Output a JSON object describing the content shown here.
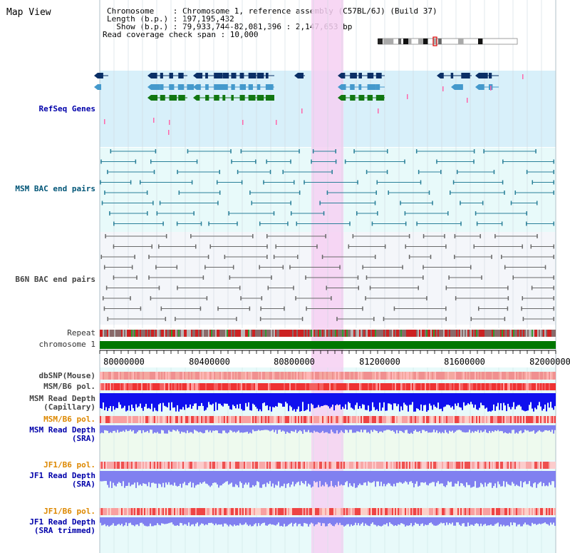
{
  "title": "Map View",
  "info": {
    "line1": "Chromosome    : Chromosome 1, reference assembly (C57BL/6J) (Build 37)",
    "line2": "Length (b.p.) : 197,195,432",
    "line3": "  Show (b.p.) : 79,933,744-82,081,396 : 2,147,653 bp",
    "line4": "Read coverage check span : 10,000"
  },
  "tracks": {
    "refseq": "RefSeq Genes",
    "msm_bac": "MSM BAC end pairs",
    "b6n_bac": "B6N BAC end pairs",
    "repeat": "Repeat",
    "chromosome": "chromosome 1",
    "dbsnp": "dbSNP(Mouse)",
    "msm_b6_pol": "MSM/B6 pol.",
    "msm_read_depth_cap": "MSM Read Depth",
    "msm_read_depth_cap_sub": "(Capillary)",
    "msm_b6_pol2": "MSM/B6 pol.",
    "msm_read_depth_sra": "MSM Read Depth",
    "msm_read_depth_sra_sub": "(SRA)",
    "jf1_b6_pol": "JF1/B6 pol.",
    "jf1_read_depth": "JF1 Read Depth",
    "jf1_read_depth_sub": "(SRA)",
    "jf1_b6_pol2": "JF1/B6 pol.",
    "jf1_read_depth_trim": "JF1 Read Depth",
    "jf1_read_depth_trim_sub": "(SRA trimmed)"
  },
  "axis": {
    "ticks": [
      "80000000",
      "80400000",
      "80800000",
      "81200000",
      "81600000",
      "82000000"
    ]
  },
  "colors": {
    "refseq_bg": "#d8f0fa",
    "msm_bg": "#e8fafa",
    "b6n_bg": "#f4f6fa",
    "highlight": "#f6d0f2",
    "chromosome": "#007700",
    "depth_capillary": "#1010ee",
    "depth_sra": "#8080f0"
  }
}
